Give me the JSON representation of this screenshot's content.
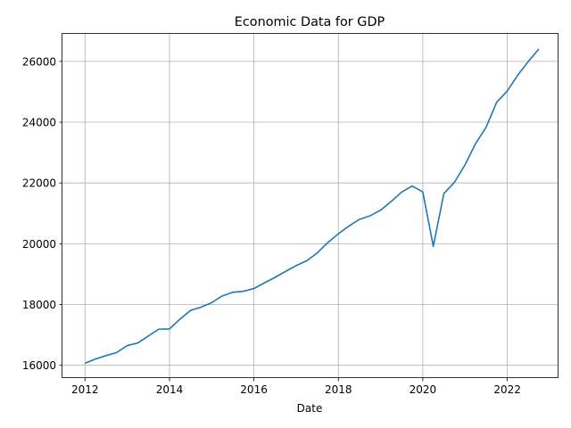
{
  "chart_data": {
    "type": "line",
    "title": "Economic Data for GDP",
    "xlabel": "Date",
    "ylabel": "",
    "grid": true,
    "legend": "none",
    "x_axis_type": "date",
    "xlim": [
      "2011-06-20",
      "2023-03-20"
    ],
    "ylim": [
      15580,
      26935
    ],
    "x_ticks": [
      "2012",
      "2014",
      "2016",
      "2018",
      "2020",
      "2022"
    ],
    "y_ticks": [
      "16000",
      "18000",
      "20000",
      "22000",
      "24000",
      "26000"
    ],
    "series": [
      {
        "name": "",
        "color": "#1f77b4",
        "x": [
          "2012-01-01",
          "2012-04-01",
          "2012-07-01",
          "2012-10-01",
          "2013-01-01",
          "2013-04-01",
          "2013-07-01",
          "2013-10-01",
          "2014-01-01",
          "2014-04-01",
          "2014-07-01",
          "2014-10-01",
          "2015-01-01",
          "2015-04-01",
          "2015-07-01",
          "2015-10-01",
          "2016-01-01",
          "2016-04-01",
          "2016-07-01",
          "2016-10-01",
          "2017-01-01",
          "2017-04-01",
          "2017-07-01",
          "2017-10-01",
          "2018-01-01",
          "2018-04-01",
          "2018-07-01",
          "2018-10-01",
          "2019-01-01",
          "2019-04-01",
          "2019-07-01",
          "2019-10-01",
          "2020-01-01",
          "2020-04-01",
          "2020-07-01",
          "2020-10-01",
          "2021-01-01",
          "2021-04-01",
          "2021-07-01",
          "2021-10-01",
          "2022-01-01",
          "2022-04-01",
          "2022-07-01",
          "2022-10-01"
        ],
        "values": [
          16068,
          16207,
          16319,
          16420,
          16649,
          16734,
          16960,
          17190,
          17197,
          17518,
          17804,
          17912,
          18063,
          18280,
          18401,
          18435,
          18525,
          18712,
          18892,
          19090,
          19280,
          19438,
          19692,
          20037,
          20328,
          20580,
          20799,
          20919,
          21105,
          21385,
          21695,
          21900,
          21707,
          19913,
          21648,
          22024,
          22600,
          23292,
          23829,
          24655,
          25029,
          25544,
          25994,
          26408
        ]
      }
    ]
  }
}
